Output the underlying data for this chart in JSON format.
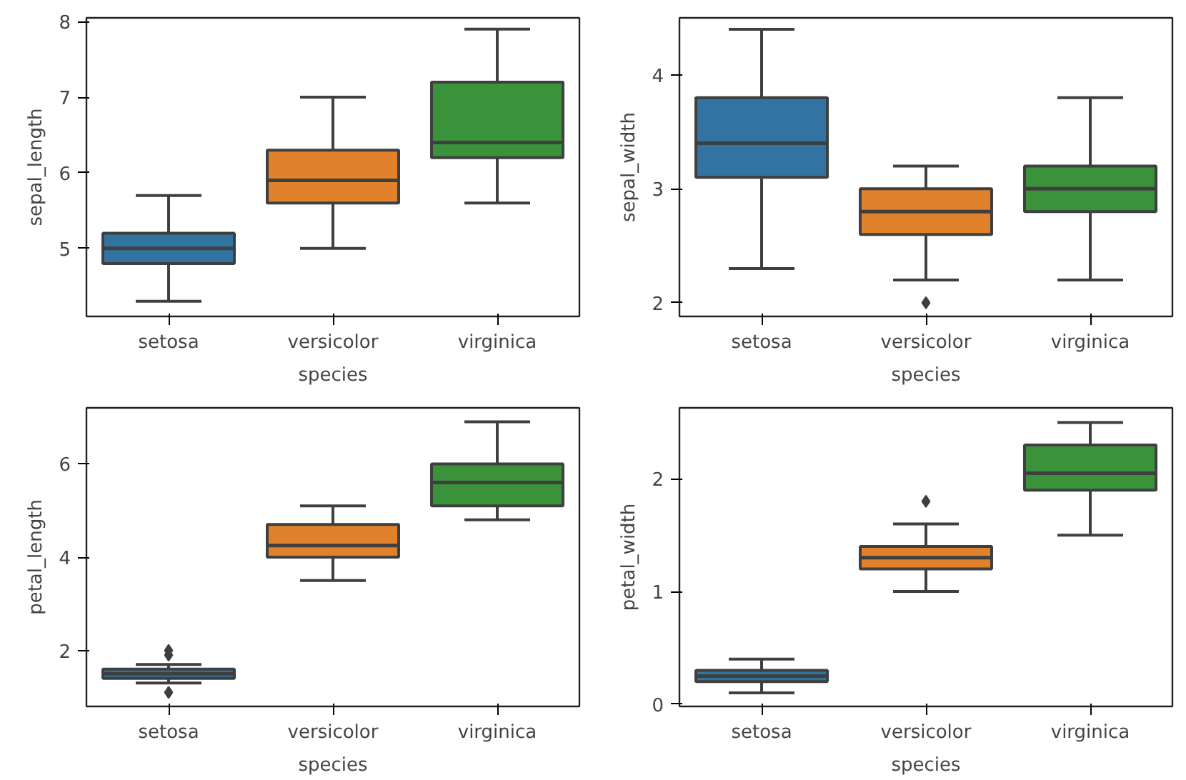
{
  "chart_data": [
    {
      "type": "box",
      "xlabel": "species",
      "ylabel": "sepal_length",
      "categories": [
        "setosa",
        "versicolor",
        "virginica"
      ],
      "colors": [
        "#3274a1",
        "#e1812c",
        "#3a923a"
      ],
      "ylim": [
        4.1,
        8.05
      ],
      "yticks": [
        5,
        6,
        7,
        8
      ],
      "marker": "diamond",
      "boxes": [
        {
          "low": 4.3,
          "q1": 4.8,
          "median": 5.0,
          "q3": 5.2,
          "high": 5.7
        },
        {
          "low": 5.0,
          "q1": 5.6,
          "median": 5.9,
          "q3": 6.3,
          "high": 7.0
        },
        {
          "low": 5.6,
          "q1": 6.2,
          "median": 6.4,
          "q3": 7.2,
          "high": 7.9
        }
      ]
    },
    {
      "type": "box",
      "xlabel": "species",
      "ylabel": "sepal_width",
      "categories": [
        "setosa",
        "versicolor",
        "virginica"
      ],
      "colors": [
        "#3274a1",
        "#e1812c",
        "#3a923a"
      ],
      "ylim": [
        1.88,
        4.5
      ],
      "yticks": [
        2,
        3,
        4
      ],
      "marker": "diamond",
      "boxes": [
        {
          "low": 2.3,
          "q1": 3.1,
          "median": 3.4,
          "q3": 3.8,
          "high": 4.4
        },
        {
          "low": 2.2,
          "q1": 2.6,
          "median": 2.8,
          "q3": 3.0,
          "high": 3.2,
          "outliers": [
            2.0
          ]
        },
        {
          "low": 2.2,
          "q1": 2.8,
          "median": 3.0,
          "q3": 3.2,
          "high": 3.8
        }
      ]
    },
    {
      "type": "box",
      "xlabel": "species",
      "ylabel": "petal_length",
      "categories": [
        "setosa",
        "versicolor",
        "virginica"
      ],
      "colors": [
        "#3274a1",
        "#e1812c",
        "#3a923a"
      ],
      "ylim": [
        0.8,
        7.2
      ],
      "yticks": [
        2,
        4,
        6
      ],
      "marker": "diamond",
      "boxes": [
        {
          "low": 1.3,
          "q1": 1.4,
          "median": 1.5,
          "q3": 1.6,
          "high": 1.7,
          "outliers": [
            1.1,
            1.9,
            2.0
          ]
        },
        {
          "low": 3.5,
          "q1": 4.0,
          "median": 4.25,
          "q3": 4.7,
          "high": 5.1
        },
        {
          "low": 4.8,
          "q1": 5.1,
          "median": 5.6,
          "q3": 6.0,
          "high": 6.9
        }
      ]
    },
    {
      "type": "box",
      "xlabel": "species",
      "ylabel": "petal_width",
      "categories": [
        "setosa",
        "versicolor",
        "virginica"
      ],
      "colors": [
        "#3274a1",
        "#e1812c",
        "#3a923a"
      ],
      "ylim": [
        -0.02,
        2.63
      ],
      "yticks": [
        0,
        1,
        2
      ],
      "marker": "diamond",
      "boxes": [
        {
          "low": 0.1,
          "q1": 0.2,
          "median": 0.25,
          "q3": 0.3,
          "high": 0.4
        },
        {
          "low": 1.0,
          "q1": 1.2,
          "median": 1.3,
          "q3": 1.4,
          "high": 1.6,
          "outliers": [
            1.8
          ]
        },
        {
          "low": 1.5,
          "q1": 1.9,
          "median": 2.05,
          "q3": 2.3,
          "high": 2.5
        }
      ]
    }
  ]
}
